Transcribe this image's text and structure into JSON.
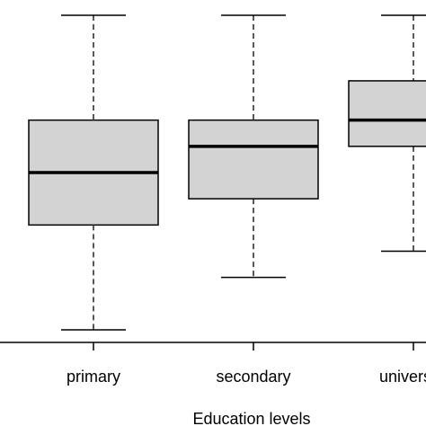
{
  "chart_data": {
    "type": "boxplot",
    "title": "",
    "xlabel": "Education levels",
    "ylabel": "",
    "categories": [
      "primary",
      "secondary",
      "university"
    ],
    "boxes": [
      {
        "category": "primary",
        "whisker_low": 0.0,
        "q1": 2.0,
        "median": 3.0,
        "q3": 4.0,
        "whisker_high": 6.0
      },
      {
        "category": "secondary",
        "whisker_low": 1.0,
        "q1": 2.5,
        "median": 3.5,
        "q3": 4.0,
        "whisker_high": 6.0
      },
      {
        "category": "university",
        "whisker_low": 1.5,
        "q1": 3.5,
        "median": 4.0,
        "q3": 4.75,
        "whisker_high": 6.0
      }
    ],
    "ylim": [
      -0.25,
      6.25
    ],
    "grid": false,
    "colors": {
      "box_fill": "#d3d3d3",
      "line": "#000000"
    }
  }
}
